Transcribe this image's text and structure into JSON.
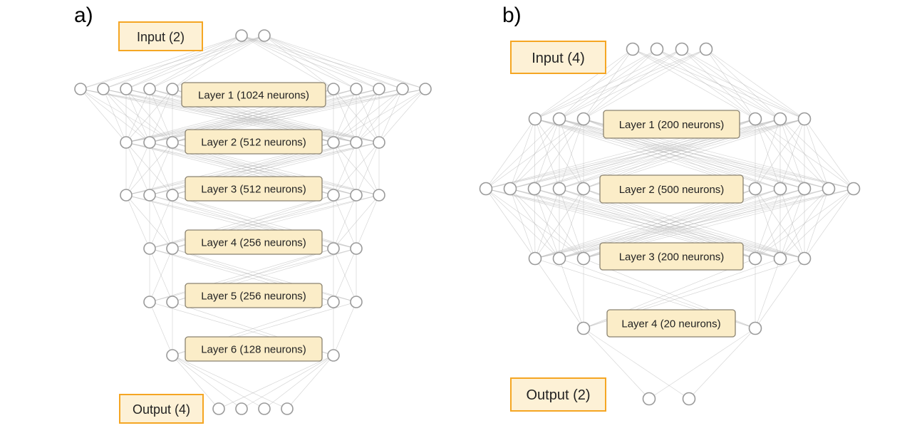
{
  "panels": [
    {
      "letter": "a)",
      "input_label": "Input (2)",
      "output_label": "Output (4)",
      "layers": [
        "Layer 1 (1024 neurons)",
        "Layer 2 (512 neurons)",
        "Layer 3 (512 neurons)",
        "Layer 4 (256 neurons)",
        "Layer 5 (256 neurons)",
        "Layer 6 (128 neurons)"
      ]
    },
    {
      "letter": "b)",
      "input_label": "Input (4)",
      "output_label": "Output (2)",
      "layers": [
        "Layer 1 (200 neurons)",
        "Layer 2 (500 neurons)",
        "Layer 3 (200 neurons)",
        "Layer 4 (20 neurons)"
      ]
    }
  ]
}
